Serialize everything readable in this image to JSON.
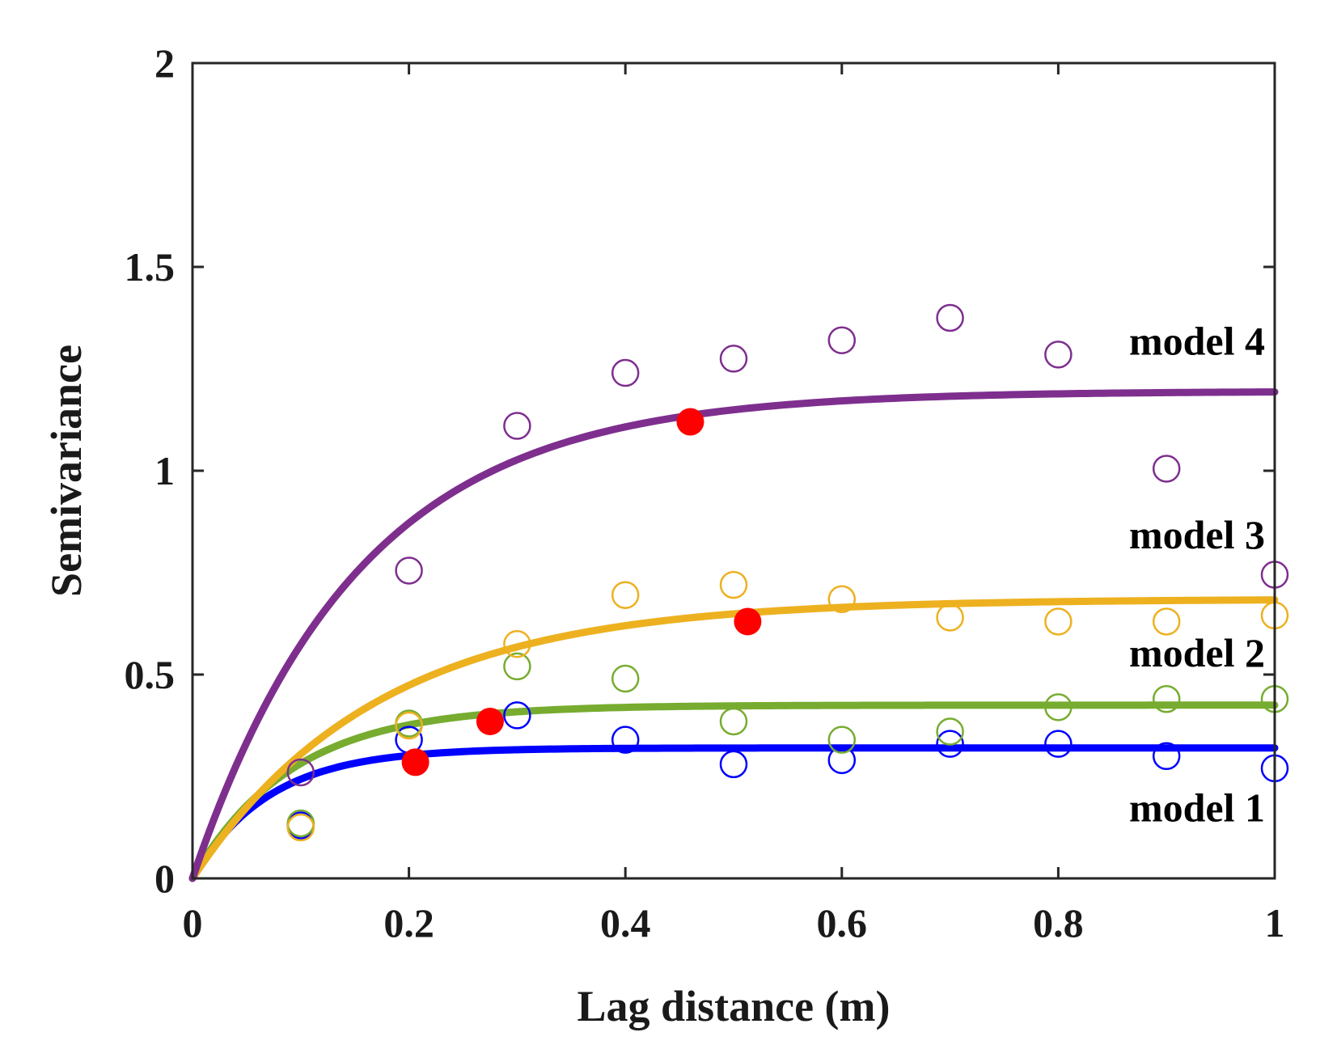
{
  "chart_data": {
    "type": "scatter",
    "title": "",
    "xlabel": "Lag distance (m)",
    "ylabel": "Semivariance",
    "xlim": [
      0,
      1
    ],
    "ylim": [
      0,
      2
    ],
    "xticks": [
      0,
      0.2,
      0.4,
      0.6,
      0.8,
      1
    ],
    "yticks": [
      0,
      0.5,
      1,
      1.5,
      2
    ],
    "xtick_labels": [
      "0",
      "0.2",
      "0.4",
      "0.6",
      "0.8",
      "1"
    ],
    "ytick_labels": [
      "0",
      "0.5",
      "1",
      "1.5",
      "2"
    ],
    "grid": false,
    "model_fit": "exponential",
    "range_marker_color": "#ff0000",
    "series": [
      {
        "name": "model 1",
        "color": "#0000ff",
        "sill": 0.32,
        "range_param": 0.07,
        "range_point": [
          0.206,
          0.285
        ],
        "x": [
          0.1,
          0.2,
          0.3,
          0.4,
          0.5,
          0.6,
          0.7,
          0.8,
          0.9,
          1.0
        ],
        "y": [
          0.13,
          0.34,
          0.4,
          0.34,
          0.28,
          0.29,
          0.33,
          0.33,
          0.3,
          0.27
        ]
      },
      {
        "name": "model 2",
        "color": "#77ac30",
        "sill": 0.425,
        "range_param": 0.092,
        "range_point": [
          0.275,
          0.385
        ],
        "x": [
          0.1,
          0.2,
          0.3,
          0.4,
          0.5,
          0.6,
          0.7,
          0.8,
          0.9,
          1.0
        ],
        "y": [
          0.135,
          0.38,
          0.52,
          0.49,
          0.385,
          0.34,
          0.36,
          0.42,
          0.44,
          0.44
        ]
      },
      {
        "name": "model 3",
        "color": "#edb120",
        "sill": 0.685,
        "range_param": 0.17,
        "range_point": [
          0.513,
          0.63
        ],
        "x": [
          0.1,
          0.2,
          0.3,
          0.4,
          0.5,
          0.6,
          0.7,
          0.8,
          0.9,
          1.0
        ],
        "y": [
          0.125,
          0.375,
          0.575,
          0.695,
          0.72,
          0.685,
          0.64,
          0.63,
          0.63,
          0.645
        ]
      },
      {
        "name": "model 4",
        "color": "#7e2f8e",
        "sill": 1.195,
        "range_param": 0.153,
        "range_point": [
          0.46,
          1.12
        ],
        "x": [
          0.1,
          0.2,
          0.3,
          0.4,
          0.5,
          0.6,
          0.7,
          0.8,
          0.9,
          1.0
        ],
        "y": [
          0.26,
          0.755,
          1.11,
          1.24,
          1.275,
          1.32,
          1.375,
          1.285,
          1.005,
          0.745
        ]
      }
    ],
    "annotations": [
      {
        "text": "model 4",
        "x": 1.0,
        "y": 1.285
      },
      {
        "text": "model 3",
        "x": 1.0,
        "y": 0.81
      },
      {
        "text": "model 2",
        "x": 1.0,
        "y": 0.52
      },
      {
        "text": "model 1",
        "x": 1.0,
        "y": 0.14
      }
    ]
  }
}
